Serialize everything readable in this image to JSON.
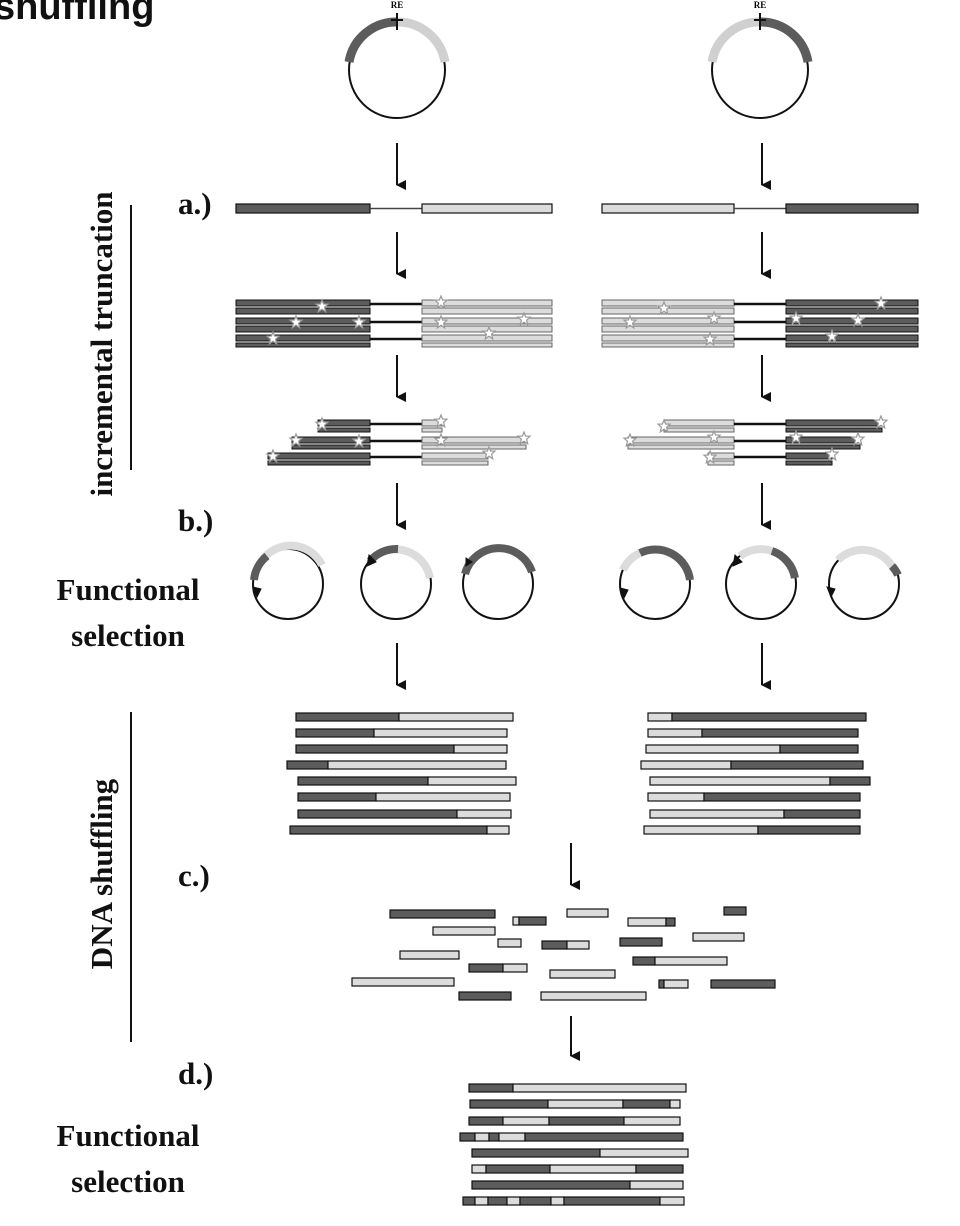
{
  "title_fragment": "shuffling",
  "plasmid_label": "RE",
  "steps": {
    "a": "a.)",
    "b": "b.)",
    "c": "c.)",
    "d": "d.)"
  },
  "side_labels": {
    "incremental_truncation": "incremental truncation",
    "dna_shuffling": "DNA shuffling"
  },
  "functional_selection_1": [
    "Functional",
    "selection"
  ],
  "functional_selection_2": [
    "Functional",
    "selection"
  ],
  "colors": {
    "dark_gene": "#5c5c5c",
    "light_gene": "#dcdcdc",
    "stroke": "#111111",
    "star": "#9a9a9a"
  },
  "icons": [
    "arrow-down-icon",
    "plasmid-icon",
    "star-marker-icon"
  ]
}
